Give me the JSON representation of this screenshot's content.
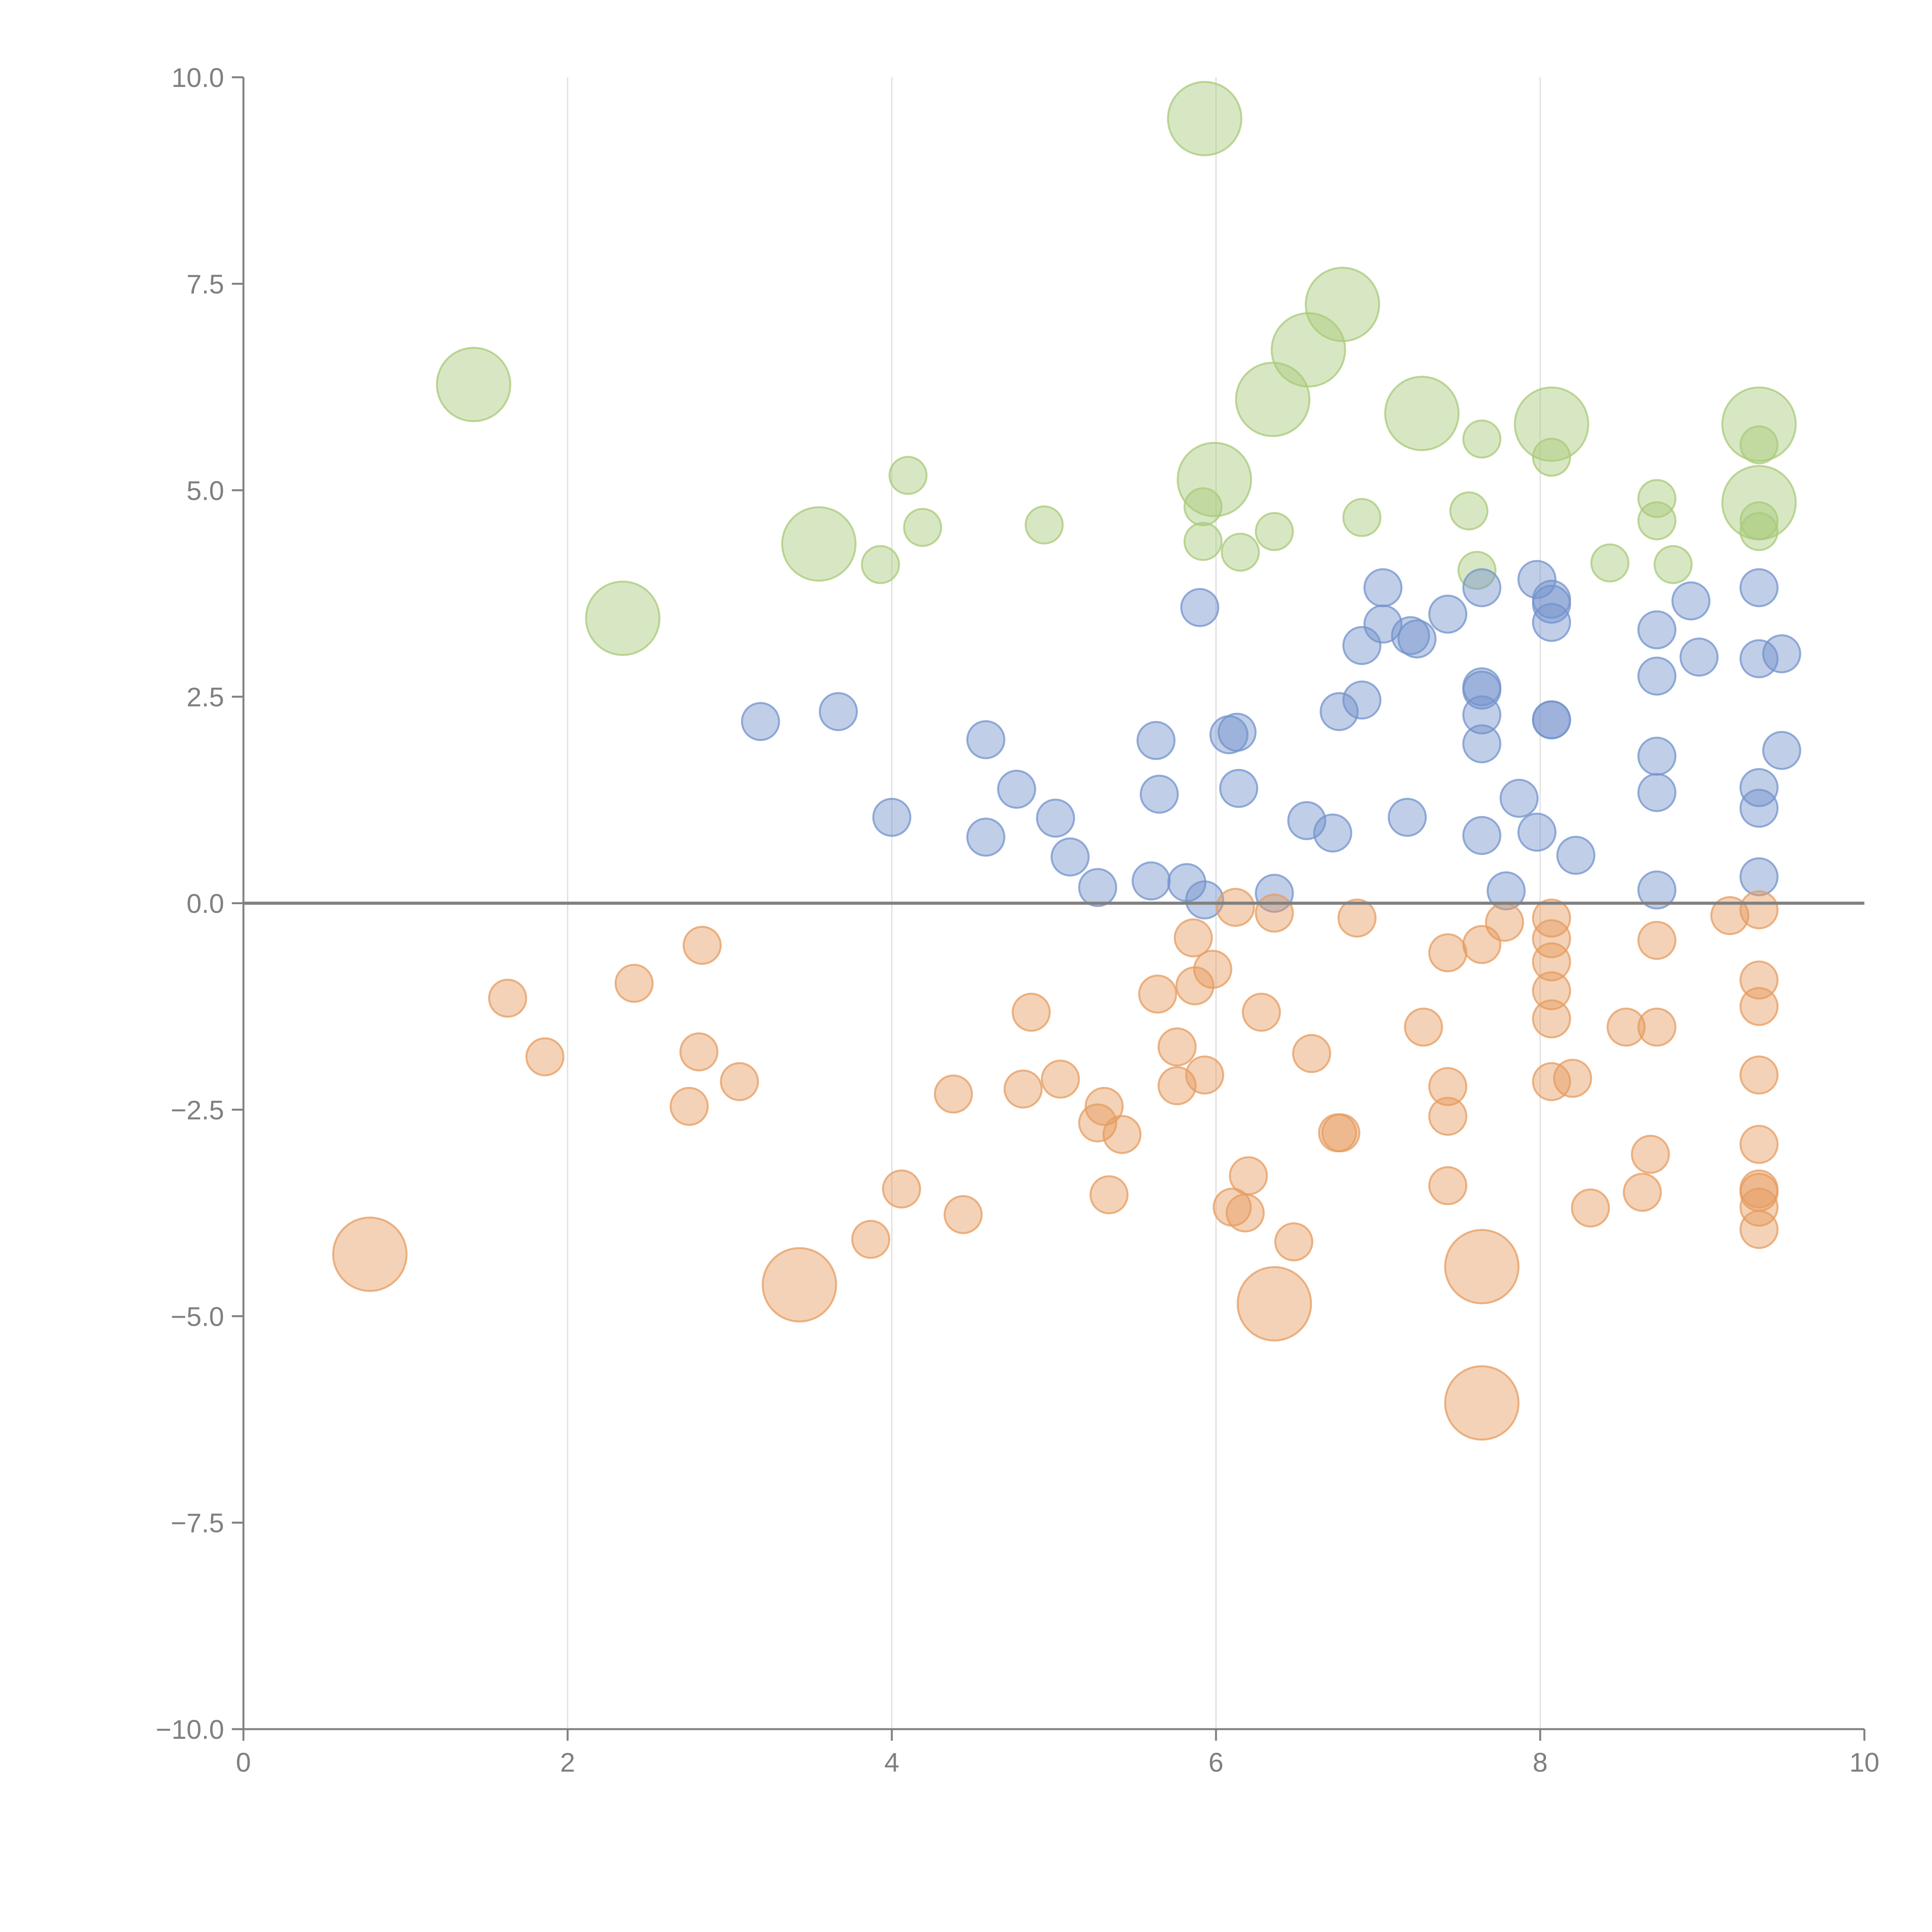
{
  "chart_data": {
    "type": "scatter",
    "title": "",
    "xlabel": "",
    "ylabel": "",
    "xlim": [
      0,
      10
    ],
    "ylim": [
      -10,
      10
    ],
    "grid": "vertical",
    "x_ticks": [
      "0",
      "2",
      "4",
      "6",
      "8",
      "10"
    ],
    "y_ticks": [
      "10.0",
      "7.5",
      "5.0",
      "2.5",
      "0.0",
      "−2.5",
      "−5.0",
      "−7.5",
      "−10.0"
    ],
    "colors": {
      "green": "#a9c97a",
      "blue": "#7393cc",
      "orange": "#e69c60",
      "axis": "#808080",
      "grid": "#dddddd"
    },
    "series": [
      {
        "name": "green",
        "color": "#a9c97a",
        "points": [
          {
            "x": 5.93,
            "y": 9.5,
            "r": 3
          },
          {
            "x": 6.78,
            "y": 7.25,
            "r": 3
          },
          {
            "x": 6.57,
            "y": 6.7,
            "r": 3
          },
          {
            "x": 1.42,
            "y": 6.28,
            "r": 3
          },
          {
            "x": 6.35,
            "y": 6.1,
            "r": 3
          },
          {
            "x": 7.27,
            "y": 5.93,
            "r": 3
          },
          {
            "x": 8.07,
            "y": 5.8,
            "r": 3
          },
          {
            "x": 9.35,
            "y": 5.8,
            "r": 3
          },
          {
            "x": 5.99,
            "y": 5.13,
            "r": 3
          },
          {
            "x": 9.35,
            "y": 4.85,
            "r": 3
          },
          {
            "x": 3.55,
            "y": 4.35,
            "r": 3
          },
          {
            "x": 2.34,
            "y": 3.45,
            "r": 3
          },
          {
            "x": 7.64,
            "y": 5.62,
            "r": 1
          },
          {
            "x": 9.35,
            "y": 5.55,
            "r": 1
          },
          {
            "x": 8.07,
            "y": 5.4,
            "r": 1
          },
          {
            "x": 4.1,
            "y": 5.18,
            "r": 1
          },
          {
            "x": 8.72,
            "y": 4.9,
            "r": 1
          },
          {
            "x": 5.92,
            "y": 4.8,
            "r": 1
          },
          {
            "x": 7.56,
            "y": 4.75,
            "r": 1
          },
          {
            "x": 6.9,
            "y": 4.67,
            "r": 1
          },
          {
            "x": 8.72,
            "y": 4.63,
            "r": 1
          },
          {
            "x": 9.35,
            "y": 4.63,
            "r": 1
          },
          {
            "x": 4.94,
            "y": 4.58,
            "r": 1
          },
          {
            "x": 4.19,
            "y": 4.55,
            "r": 1
          },
          {
            "x": 6.36,
            "y": 4.5,
            "r": 1
          },
          {
            "x": 9.35,
            "y": 4.5,
            "r": 1
          },
          {
            "x": 5.92,
            "y": 4.38,
            "r": 1
          },
          {
            "x": 6.15,
            "y": 4.25,
            "r": 1
          },
          {
            "x": 8.43,
            "y": 4.12,
            "r": 1
          },
          {
            "x": 3.93,
            "y": 4.1,
            "r": 1
          },
          {
            "x": 8.82,
            "y": 4.1,
            "r": 1
          },
          {
            "x": 7.61,
            "y": 4.03,
            "r": 1
          }
        ]
      },
      {
        "name": "blue",
        "color": "#7393cc",
        "points": [
          {
            "x": 7.98,
            "y": 3.92,
            "r": 1
          },
          {
            "x": 7.03,
            "y": 3.82,
            "r": 1
          },
          {
            "x": 7.64,
            "y": 3.82,
            "r": 1
          },
          {
            "x": 9.35,
            "y": 3.82,
            "r": 1
          },
          {
            "x": 8.07,
            "y": 3.68,
            "r": 1
          },
          {
            "x": 8.93,
            "y": 3.66,
            "r": 1
          },
          {
            "x": 8.07,
            "y": 3.62,
            "r": 1
          },
          {
            "x": 5.9,
            "y": 3.58,
            "r": 1
          },
          {
            "x": 7.43,
            "y": 3.5,
            "r": 1
          },
          {
            "x": 8.07,
            "y": 3.4,
            "r": 1
          },
          {
            "x": 7.03,
            "y": 3.38,
            "r": 1
          },
          {
            "x": 8.72,
            "y": 3.31,
            "r": 1
          },
          {
            "x": 7.2,
            "y": 3.24,
            "r": 1
          },
          {
            "x": 7.24,
            "y": 3.2,
            "r": 1
          },
          {
            "x": 6.9,
            "y": 3.12,
            "r": 1
          },
          {
            "x": 9.49,
            "y": 3.02,
            "r": 1
          },
          {
            "x": 8.98,
            "y": 2.98,
            "r": 1
          },
          {
            "x": 9.35,
            "y": 2.96,
            "r": 1
          },
          {
            "x": 8.72,
            "y": 2.75,
            "r": 1
          },
          {
            "x": 7.64,
            "y": 2.62,
            "r": 1
          },
          {
            "x": 7.64,
            "y": 2.58,
            "r": 1
          },
          {
            "x": 6.9,
            "y": 2.46,
            "r": 1
          },
          {
            "x": 6.76,
            "y": 2.32,
            "r": 1
          },
          {
            "x": 3.67,
            "y": 2.32,
            "r": 1
          },
          {
            "x": 7.64,
            "y": 2.28,
            "r": 1
          },
          {
            "x": 8.07,
            "y": 2.22,
            "r": 1
          },
          {
            "x": 8.07,
            "y": 2.22,
            "r": 1
          },
          {
            "x": 3.19,
            "y": 2.2,
            "r": 1
          },
          {
            "x": 6.13,
            "y": 2.07,
            "r": 1
          },
          {
            "x": 6.08,
            "y": 2.04,
            "r": 1
          },
          {
            "x": 4.58,
            "y": 1.98,
            "r": 1
          },
          {
            "x": 5.63,
            "y": 1.97,
            "r": 1
          },
          {
            "x": 7.64,
            "y": 1.93,
            "r": 1
          },
          {
            "x": 9.49,
            "y": 1.85,
            "r": 1
          },
          {
            "x": 8.72,
            "y": 1.78,
            "r": 1
          },
          {
            "x": 9.35,
            "y": 1.4,
            "r": 1
          },
          {
            "x": 6.14,
            "y": 1.39,
            "r": 1
          },
          {
            "x": 4.77,
            "y": 1.38,
            "r": 1
          },
          {
            "x": 8.72,
            "y": 1.34,
            "r": 1
          },
          {
            "x": 5.65,
            "y": 1.32,
            "r": 1
          },
          {
            "x": 7.87,
            "y": 1.27,
            "r": 1
          },
          {
            "x": 9.35,
            "y": 1.15,
            "r": 1
          },
          {
            "x": 4.0,
            "y": 1.04,
            "r": 1
          },
          {
            "x": 7.18,
            "y": 1.04,
            "r": 1
          },
          {
            "x": 5.01,
            "y": 1.03,
            "r": 1
          },
          {
            "x": 6.56,
            "y": 1.0,
            "r": 1
          },
          {
            "x": 7.98,
            "y": 0.86,
            "r": 1
          },
          {
            "x": 6.72,
            "y": 0.85,
            "r": 1
          },
          {
            "x": 7.64,
            "y": 0.82,
            "r": 1
          },
          {
            "x": 4.58,
            "y": 0.8,
            "r": 1
          },
          {
            "x": 8.22,
            "y": 0.58,
            "r": 1
          },
          {
            "x": 5.1,
            "y": 0.56,
            "r": 1
          },
          {
            "x": 9.35,
            "y": 0.32,
            "r": 1
          },
          {
            "x": 5.6,
            "y": 0.27,
            "r": 1
          },
          {
            "x": 5.82,
            "y": 0.25,
            "r": 1
          },
          {
            "x": 5.27,
            "y": 0.19,
            "r": 1
          },
          {
            "x": 8.72,
            "y": 0.16,
            "r": 1
          },
          {
            "x": 7.79,
            "y": 0.15,
            "r": 1
          },
          {
            "x": 6.36,
            "y": 0.12,
            "r": 1
          },
          {
            "x": 5.93,
            "y": 0.04,
            "r": 1
          }
        ]
      },
      {
        "name": "orange",
        "color": "#e69c60",
        "points": [
          {
            "x": 6.12,
            "y": -0.05,
            "r": 1
          },
          {
            "x": 9.35,
            "y": -0.08,
            "r": 1
          },
          {
            "x": 6.36,
            "y": -0.12,
            "r": 1
          },
          {
            "x": 9.17,
            "y": -0.15,
            "r": 1
          },
          {
            "x": 8.07,
            "y": -0.18,
            "r": 1
          },
          {
            "x": 6.87,
            "y": -0.18,
            "r": 1
          },
          {
            "x": 7.78,
            "y": -0.23,
            "r": 1
          },
          {
            "x": 5.86,
            "y": -0.42,
            "r": 1
          },
          {
            "x": 8.07,
            "y": -0.43,
            "r": 1
          },
          {
            "x": 8.72,
            "y": -0.45,
            "r": 1
          },
          {
            "x": 7.64,
            "y": -0.5,
            "r": 1
          },
          {
            "x": 2.83,
            "y": -0.51,
            "r": 1
          },
          {
            "x": 7.43,
            "y": -0.6,
            "r": 1
          },
          {
            "x": 8.07,
            "y": -0.71,
            "r": 1
          },
          {
            "x": 5.98,
            "y": -0.8,
            "r": 1
          },
          {
            "x": 9.35,
            "y": -0.93,
            "r": 1
          },
          {
            "x": 2.41,
            "y": -0.97,
            "r": 1
          },
          {
            "x": 5.87,
            "y": -1.0,
            "r": 1
          },
          {
            "x": 8.07,
            "y": -1.06,
            "r": 1
          },
          {
            "x": 5.64,
            "y": -1.1,
            "r": 1
          },
          {
            "x": 1.63,
            "y": -1.15,
            "r": 1
          },
          {
            "x": 9.35,
            "y": -1.25,
            "r": 1
          },
          {
            "x": 6.28,
            "y": -1.32,
            "r": 1
          },
          {
            "x": 4.86,
            "y": -1.32,
            "r": 1
          },
          {
            "x": 8.07,
            "y": -1.4,
            "r": 1
          },
          {
            "x": 8.53,
            "y": -1.5,
            "r": 1
          },
          {
            "x": 8.72,
            "y": -1.5,
            "r": 1
          },
          {
            "x": 7.28,
            "y": -1.5,
            "r": 1
          },
          {
            "x": 5.76,
            "y": -1.74,
            "r": 1
          },
          {
            "x": 6.59,
            "y": -1.82,
            "r": 1
          },
          {
            "x": 2.81,
            "y": -1.8,
            "r": 1
          },
          {
            "x": 1.86,
            "y": -1.86,
            "r": 1
          },
          {
            "x": 5.93,
            "y": -2.08,
            "r": 1
          },
          {
            "x": 9.35,
            "y": -2.08,
            "r": 1
          },
          {
            "x": 8.2,
            "y": -2.12,
            "r": 1
          },
          {
            "x": 5.04,
            "y": -2.13,
            "r": 1
          },
          {
            "x": 3.06,
            "y": -2.16,
            "r": 1
          },
          {
            "x": 8.07,
            "y": -2.16,
            "r": 1
          },
          {
            "x": 5.76,
            "y": -2.21,
            "r": 1
          },
          {
            "x": 7.43,
            "y": -2.22,
            "r": 1
          },
          {
            "x": 4.81,
            "y": -2.25,
            "r": 1
          },
          {
            "x": 4.38,
            "y": -2.31,
            "r": 1
          },
          {
            "x": 2.75,
            "y": -2.46,
            "r": 1
          },
          {
            "x": 5.31,
            "y": -2.46,
            "r": 1
          },
          {
            "x": 7.43,
            "y": -2.58,
            "r": 1
          },
          {
            "x": 5.27,
            "y": -2.66,
            "r": 1
          },
          {
            "x": 6.75,
            "y": -2.78,
            "r": 1
          },
          {
            "x": 6.77,
            "y": -2.78,
            "r": 1
          },
          {
            "x": 5.42,
            "y": -2.8,
            "r": 1
          },
          {
            "x": 9.35,
            "y": -2.92,
            "r": 1
          },
          {
            "x": 8.68,
            "y": -3.04,
            "r": 1
          },
          {
            "x": 6.2,
            "y": -3.3,
            "r": 1
          },
          {
            "x": 7.43,
            "y": -3.42,
            "r": 1
          },
          {
            "x": 4.06,
            "y": -3.46,
            "r": 1
          },
          {
            "x": 9.35,
            "y": -3.46,
            "r": 1
          },
          {
            "x": 8.63,
            "y": -3.5,
            "r": 1
          },
          {
            "x": 9.35,
            "y": -3.5,
            "r": 1
          },
          {
            "x": 5.34,
            "y": -3.53,
            "r": 1
          },
          {
            "x": 6.1,
            "y": -3.68,
            "r": 1
          },
          {
            "x": 9.35,
            "y": -3.68,
            "r": 1
          },
          {
            "x": 8.31,
            "y": -3.69,
            "r": 1
          },
          {
            "x": 6.18,
            "y": -3.75,
            "r": 1
          },
          {
            "x": 4.44,
            "y": -3.77,
            "r": 1
          },
          {
            "x": 9.35,
            "y": -3.95,
            "r": 1
          },
          {
            "x": 3.87,
            "y": -4.07,
            "r": 1
          },
          {
            "x": 6.48,
            "y": -4.1,
            "r": 1
          },
          {
            "x": 0.78,
            "y": -4.25,
            "r": 3
          },
          {
            "x": 7.64,
            "y": -4.4,
            "r": 3
          },
          {
            "x": 3.43,
            "y": -4.62,
            "r": 3
          },
          {
            "x": 6.36,
            "y": -4.85,
            "r": 3
          },
          {
            "x": 7.64,
            "y": -6.05,
            "r": 3
          }
        ]
      }
    ]
  }
}
